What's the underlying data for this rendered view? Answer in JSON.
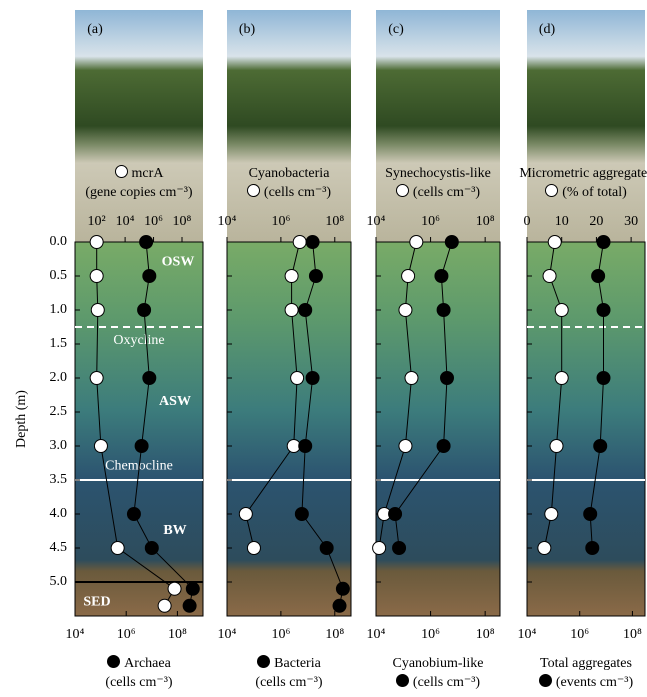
{
  "chart_data": [
    {
      "type": "line",
      "label": "(a)",
      "ylabel": "Depth (m)",
      "ylim": [
        0,
        5.5
      ],
      "yticks": [
        {
          "value": 0,
          "label": "0.0"
        },
        {
          "value": 0.5,
          "label": "0.5"
        },
        {
          "value": 1,
          "label": "1.0"
        },
        {
          "value": 1.5,
          "label": "1.5"
        },
        {
          "value": 2,
          "label": "2.0"
        },
        {
          "value": 2.5,
          "label": "2.5"
        },
        {
          "value": 3,
          "label": "3.0"
        },
        {
          "value": 3.5,
          "label": "3.5"
        },
        {
          "value": 4,
          "label": "4.0"
        },
        {
          "value": 4.5,
          "label": "4.5"
        },
        {
          "value": 5,
          "label": "5.0"
        }
      ],
      "x2scale": "log",
      "x2lim": [
        3,
        3000000000
      ],
      "x2ticks": [
        {
          "value": 100,
          "label": "10²"
        },
        {
          "value": 10000,
          "label": "10⁴"
        },
        {
          "value": 1000000,
          "label": "10⁶"
        },
        {
          "value": 100000000,
          "label": "10⁸"
        }
      ],
      "xscale": "log",
      "xlim": [
        10000,
        1000000000
      ],
      "xticks": [
        {
          "value": 10000,
          "label": "10⁴"
        },
        {
          "value": 1000000,
          "label": "10⁶"
        },
        {
          "value": 100000000,
          "label": "10⁸"
        }
      ],
      "reference_lines": [
        {
          "value": 1.25,
          "color": "#ffffff",
          "style": "dashed"
        },
        {
          "value": 3.5,
          "color": "#ffffff",
          "style": "solid"
        },
        {
          "value": 5,
          "color": "#000000",
          "style": "solid"
        }
      ],
      "annotations": [
        "OSW",
        "Oxycline",
        "ASW",
        "Chemocline",
        "BW",
        "SED"
      ],
      "series": [
        {
          "name": "mcrA",
          "unit": "(gene copies cm⁻³)",
          "color": "#ffffff",
          "axis": "x2",
          "depth": [
            0,
            0.5,
            1,
            2,
            3,
            4.5,
            5.1,
            5.35
          ],
          "values": [
            100,
            100,
            120,
            100,
            200,
            3000,
            30000000,
            6000000
          ]
        },
        {
          "name": "Archaea",
          "unit": "(cells cm⁻³)",
          "color": "#000000",
          "axis": "x",
          "depth": [
            0,
            0.5,
            1,
            2,
            3,
            4,
            4.5,
            5.1,
            5.35
          ],
          "values": [
            6000000,
            8000000,
            5000000,
            8000000,
            4000000,
            2000000,
            10000000,
            400000000,
            300000000
          ]
        }
      ]
    },
    {
      "type": "line",
      "label": "(b)",
      "ylim": [
        0,
        5.5
      ],
      "x2scale": "log",
      "x2lim": [
        10000,
        400000000
      ],
      "x2ticks": [
        {
          "value": 10000,
          "label": "10⁴"
        },
        {
          "value": 1000000,
          "label": "10⁶"
        },
        {
          "value": 100000000,
          "label": "10⁸"
        }
      ],
      "xscale": "log",
      "xlim": [
        10000,
        400000000
      ],
      "xticks": [
        {
          "value": 10000,
          "label": "10⁴"
        },
        {
          "value": 1000000,
          "label": "10⁶"
        },
        {
          "value": 100000000,
          "label": "10⁸"
        }
      ],
      "reference_lines": [
        {
          "value": 3.5,
          "color": "#ffffff",
          "style": "solid"
        }
      ],
      "series": [
        {
          "name": "Cyanobacteria",
          "unit": "(cells cm⁻³)",
          "color": "#ffffff",
          "axis": "x2",
          "depth": [
            0,
            0.5,
            1,
            2,
            3,
            4,
            4.5
          ],
          "values": [
            5000000,
            2500000,
            2500000,
            4000000,
            3000000,
            50000,
            100000
          ]
        },
        {
          "name": "Bacteria",
          "unit": "(cells cm⁻³)",
          "color": "#000000",
          "axis": "x",
          "depth": [
            0,
            0.5,
            1,
            2,
            3,
            4,
            4.5,
            5.1,
            5.35
          ],
          "values": [
            15000000,
            20000000,
            8000000,
            15000000,
            8000000,
            6000000,
            50000000,
            200000000,
            150000000
          ]
        }
      ]
    },
    {
      "type": "line",
      "label": "(c)",
      "ylim": [
        0,
        5.5
      ],
      "x2scale": "log",
      "x2lim": [
        10000,
        350000000
      ],
      "x2ticks": [
        {
          "value": 10000,
          "label": "10⁴"
        },
        {
          "value": 1000000,
          "label": "10⁶"
        },
        {
          "value": 100000000,
          "label": "10⁸"
        }
      ],
      "xscale": "log",
      "xlim": [
        10000,
        350000000
      ],
      "xticks": [
        {
          "value": 10000,
          "label": "10⁴"
        },
        {
          "value": 1000000,
          "label": "10⁶"
        },
        {
          "value": 100000000,
          "label": "10⁸"
        }
      ],
      "reference_lines": [
        {
          "value": 3.5,
          "color": "#ffffff",
          "style": "solid"
        }
      ],
      "series": [
        {
          "name": "Synechocystis-like",
          "unit": "(cells cm⁻³)",
          "color": "#ffffff",
          "axis": "x2",
          "depth": [
            0,
            0.5,
            1,
            2,
            3,
            4,
            4.5
          ],
          "values": [
            300000,
            150000,
            120000,
            200000,
            120000,
            20000,
            13000
          ]
        },
        {
          "name": "Cyanobium-like",
          "unit": "(cells cm⁻³)",
          "color": "#000000",
          "axis": "x",
          "depth": [
            0,
            0.5,
            1,
            2,
            3,
            4,
            4.5
          ],
          "values": [
            6000000,
            2500000,
            3000000,
            4000000,
            3000000,
            50000,
            70000
          ]
        }
      ]
    },
    {
      "type": "line",
      "label": "(d)",
      "ylim": [
        0,
        5.5
      ],
      "x2scale": "linear",
      "x2lim": [
        0,
        34
      ],
      "x2ticks": [
        0,
        10,
        20,
        30
      ],
      "xscale": "log",
      "xlim": [
        10000,
        300000000
      ],
      "xticks": [
        {
          "value": 10000,
          "label": "10⁴"
        },
        {
          "value": 1000000,
          "label": "10⁶"
        },
        {
          "value": 100000000,
          "label": "10⁸"
        }
      ],
      "reference_lines": [
        {
          "value": 1.25,
          "color": "#ffffff",
          "style": "dashed"
        },
        {
          "value": 3.5,
          "color": "#ffffff",
          "style": "solid"
        }
      ],
      "series": [
        {
          "name": "Micrometric aggregates",
          "unit": "(% of total)",
          "color": "#ffffff",
          "axis": "x2",
          "depth": [
            0,
            0.5,
            1,
            2,
            3,
            4,
            4.5
          ],
          "values": [
            8,
            6.5,
            10,
            10,
            8.5,
            7,
            5
          ]
        },
        {
          "name": "Total aggregates",
          "unit": "(events cm⁻³)",
          "color": "#000000",
          "axis": "x",
          "depth": [
            0,
            0.5,
            1,
            2,
            3,
            4,
            4.5
          ],
          "values": [
            8000000,
            5000000,
            8000000,
            8000000,
            6000000,
            2500000,
            3000000
          ]
        }
      ]
    }
  ]
}
